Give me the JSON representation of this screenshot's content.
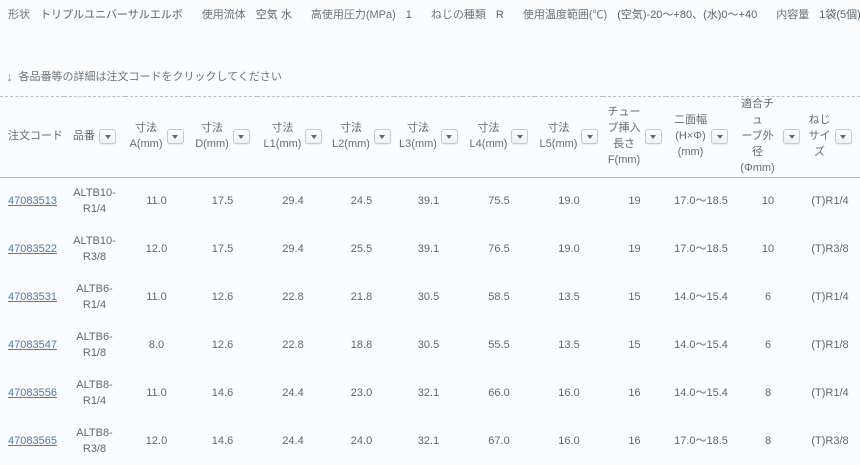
{
  "spec_bar": {
    "items": [
      {
        "label": "形状",
        "value": "トリプルユニバーサルエルボ"
      },
      {
        "label": "使用流体",
        "value": "空気 水"
      },
      {
        "label": "高使用圧力(MPa)",
        "value": "1"
      },
      {
        "label": "ねじの種類",
        "value": "R"
      },
      {
        "label": "使用温度範囲(℃)",
        "value": "(空気)-20～+80、(水)0～+40"
      },
      {
        "label": "内容量",
        "value": "1袋(5個)"
      }
    ]
  },
  "note": {
    "icon": "↓",
    "text": "各品番等の詳細は注文コードをクリックしてください"
  },
  "table": {
    "columns": [
      {
        "lines": [
          "注文コード"
        ],
        "filter": false
      },
      {
        "lines": [
          "品番"
        ],
        "filter": true
      },
      {
        "lines": [
          "寸法",
          "A(mm)"
        ],
        "filter": true
      },
      {
        "lines": [
          "寸法",
          "D(mm)"
        ],
        "filter": true
      },
      {
        "lines": [
          "寸法",
          "L1(mm)"
        ],
        "filter": true
      },
      {
        "lines": [
          "寸法",
          "L2(mm)"
        ],
        "filter": true
      },
      {
        "lines": [
          "寸法",
          "L3(mm)"
        ],
        "filter": true
      },
      {
        "lines": [
          "寸法",
          "L4(mm)"
        ],
        "filter": true
      },
      {
        "lines": [
          "寸法",
          "L5(mm)"
        ],
        "filter": true
      },
      {
        "lines": [
          "チュー",
          "ブ挿入",
          "長さ",
          "F(mm)"
        ],
        "filter": true
      },
      {
        "lines": [
          "二面幅",
          "(H×Φ)",
          "(mm)"
        ],
        "filter": true
      },
      {
        "lines": [
          "適合チュ",
          "ーブ外径",
          "(Φmm)"
        ],
        "filter": true
      },
      {
        "lines": [
          "ねじ",
          "サイ",
          "ズ"
        ],
        "filter": true
      }
    ],
    "rows": [
      {
        "code": "47083513",
        "item": "ALTB10-R1/4",
        "values": [
          "11.0",
          "17.5",
          "29.4",
          "24.5",
          "39.1",
          "75.5",
          "19.0",
          "19",
          "17.0～18.5",
          "10",
          "(T)R1/4"
        ]
      },
      {
        "code": "47083522",
        "item": "ALTB10-R3/8",
        "values": [
          "12.0",
          "17.5",
          "29.4",
          "25.5",
          "39.1",
          "76.5",
          "19.0",
          "19",
          "17.0～18.5",
          "10",
          "(T)R3/8"
        ]
      },
      {
        "code": "47083531",
        "item": "ALTB6-R1/4",
        "values": [
          "11.0",
          "12.6",
          "22.8",
          "21.8",
          "30.5",
          "58.5",
          "13.5",
          "15",
          "14.0～15.4",
          "6",
          "(T)R1/4"
        ]
      },
      {
        "code": "47083547",
        "item": "ALTB6-R1/8",
        "values": [
          "8.0",
          "12.6",
          "22.8",
          "18.8",
          "30.5",
          "55.5",
          "13.5",
          "15",
          "14.0～15.4",
          "6",
          "(T)R1/8"
        ]
      },
      {
        "code": "47083556",
        "item": "ALTB8-R1/4",
        "values": [
          "11.0",
          "14.6",
          "24.4",
          "23.0",
          "32.1",
          "66.0",
          "16.0",
          "16",
          "14.0～15.4",
          "8",
          "(T)R1/4"
        ]
      },
      {
        "code": "47083565",
        "item": "ALTB8-R3/8",
        "values": [
          "12.0",
          "14.6",
          "24.4",
          "24.0",
          "32.1",
          "67.0",
          "16.0",
          "16",
          "17.0～18.5",
          "8",
          "(T)R3/8"
        ]
      }
    ]
  },
  "colors": {
    "link": "#4a7ab2",
    "text": "#5d6873",
    "dashed_border": "#b6bec6",
    "header_underline": "#aab2ba"
  }
}
